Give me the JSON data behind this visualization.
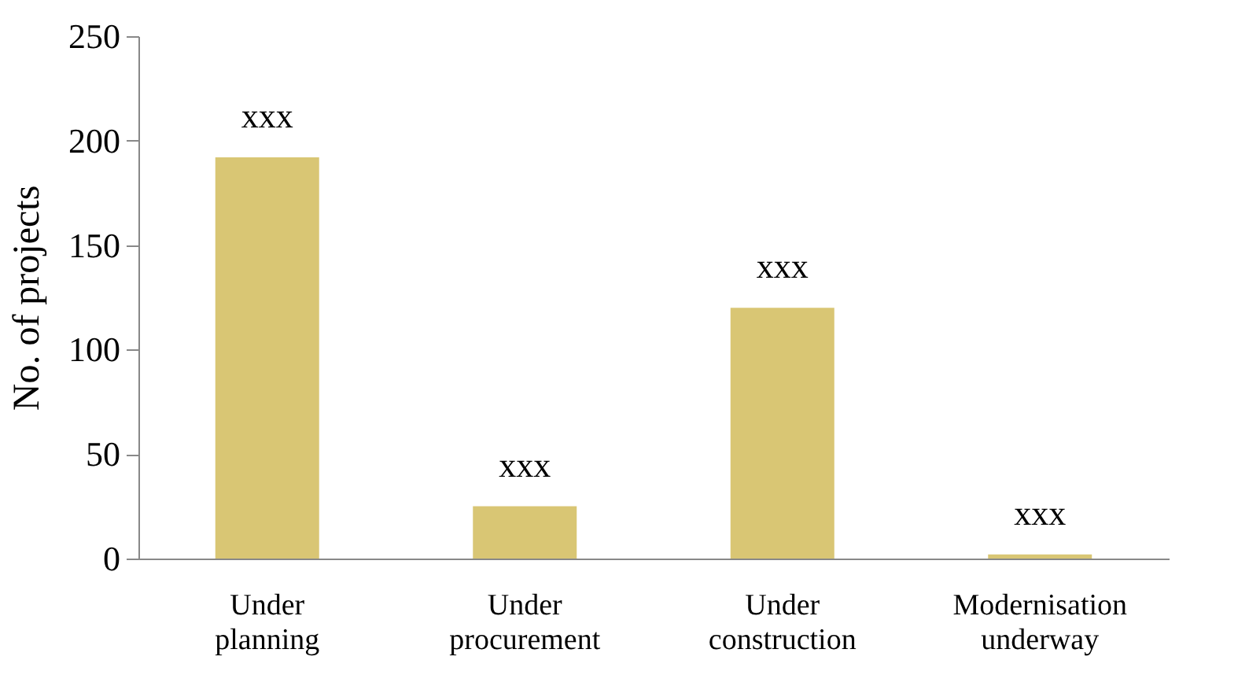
{
  "chart_data": {
    "type": "bar",
    "ylabel": "No. of projects",
    "categories": [
      "Under planning",
      "Under procurement",
      "Under construction",
      "Modernisation underway"
    ],
    "values": [
      192,
      25,
      120,
      2
    ],
    "value_labels": [
      "xxx",
      "xxx",
      "xxx",
      "xxx"
    ],
    "color": "#d9c674",
    "ylim": [
      0,
      250
    ],
    "yticks": [
      0,
      50,
      100,
      150,
      200,
      250
    ],
    "grid": false
  }
}
